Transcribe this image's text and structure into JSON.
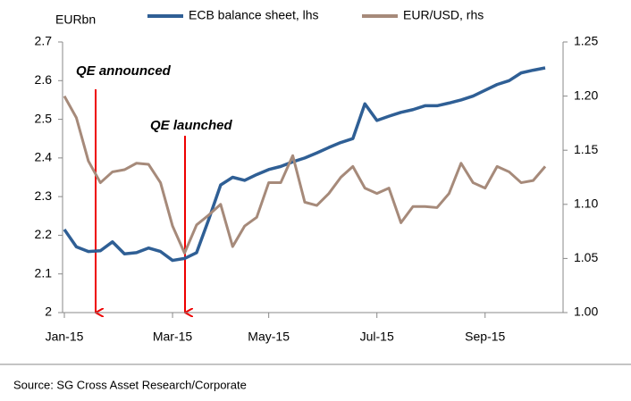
{
  "chart_data": {
    "type": "line",
    "legend": "top",
    "y_axis_label": "EURbn",
    "source": "Source: SG Cross Asset Research/Corporate",
    "annotations": [
      "QE announced",
      "QE launched"
    ],
    "categories": [
      "Jan-15",
      null,
      null,
      null,
      null,
      null,
      null,
      null,
      null,
      "Mar-15",
      null,
      null,
      null,
      null,
      null,
      null,
      null,
      "May-15",
      null,
      null,
      null,
      null,
      null,
      null,
      null,
      null,
      "Jul-15",
      null,
      null,
      null,
      null,
      null,
      null,
      null,
      null,
      "Sep-15",
      null,
      null,
      null,
      null,
      null
    ],
    "series": [
      {
        "name": "ECB balance sheet, lhs",
        "color": "#2f5f95",
        "axis": "y",
        "values": [
          2.215,
          2.17,
          2.158,
          2.16,
          2.183,
          2.152,
          2.155,
          2.167,
          2.158,
          2.135,
          2.14,
          2.155,
          2.24,
          2.33,
          2.35,
          2.342,
          2.357,
          2.37,
          2.378,
          2.39,
          2.4,
          2.413,
          2.427,
          2.44,
          2.45,
          2.54,
          2.497,
          2.508,
          2.518,
          2.525,
          2.535,
          2.535,
          2.542,
          2.55,
          2.56,
          2.575,
          2.59,
          2.6,
          2.62,
          2.627,
          2.633
        ]
      },
      {
        "name": "EUR/USD, rhs",
        "color": "#a68a7a",
        "axis": "y2",
        "values": [
          1.2,
          1.18,
          1.14,
          1.12,
          1.13,
          1.132,
          1.138,
          1.137,
          1.12,
          1.08,
          1.055,
          1.081,
          1.09,
          1.1,
          1.061,
          1.08,
          1.088,
          1.12,
          1.12,
          1.145,
          1.102,
          1.099,
          1.11,
          1.125,
          1.135,
          1.115,
          1.11,
          1.115,
          1.083,
          1.098,
          1.098,
          1.097,
          1.11,
          1.138,
          1.12,
          1.115,
          1.135,
          1.13,
          1.12,
          1.122,
          1.135
        ]
      }
    ],
    "ylim": [
      2,
      2.7
    ],
    "yticks": [
      2,
      2.1,
      2.2,
      2.3,
      2.4,
      2.5,
      2.6,
      2.7
    ],
    "y2lim": [
      1,
      1.25
    ],
    "y2ticks": [
      {
        "value": 1,
        "label": "1.00"
      },
      1.05,
      {
        "value": 1.1,
        "label": "1.10"
      },
      1.15,
      {
        "value": 1.2,
        "label": "1.20"
      },
      1.25
    ],
    "grid": false
  }
}
